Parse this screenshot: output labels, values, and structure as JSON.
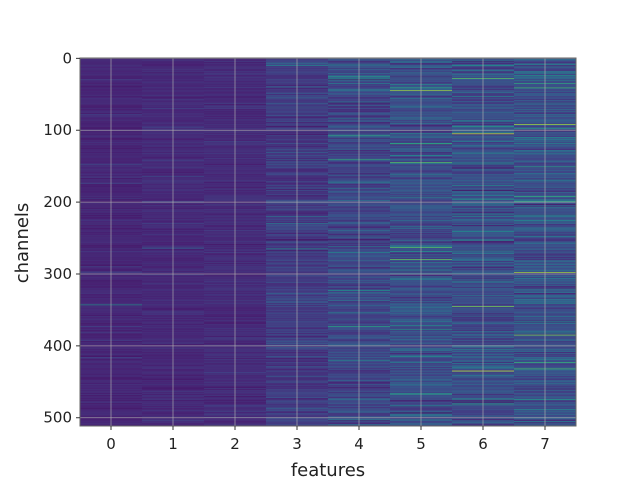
{
  "chart_data": {
    "type": "heatmap",
    "title": "",
    "xlabel": "features",
    "ylabel": "channels",
    "x_categories": [
      "0",
      "1",
      "2",
      "3",
      "4",
      "5",
      "6",
      "7"
    ],
    "y_range": [
      0,
      511
    ],
    "y_ticks": [
      "0",
      "100",
      "200",
      "300",
      "400",
      "500"
    ],
    "y_inverted": true,
    "colormap": "viridis",
    "grid": true,
    "value_range": [
      0,
      1
    ],
    "column_mean_intensity": [
      0.14,
      0.15,
      0.16,
      0.22,
      0.27,
      0.3,
      0.3,
      0.32
    ],
    "column_spread": [
      0.05,
      0.05,
      0.06,
      0.12,
      0.15,
      0.17,
      0.17,
      0.18
    ],
    "highlights": [
      {
        "feature": 0,
        "channel": 343,
        "value": 0.62
      },
      {
        "feature": 1,
        "channel": 264,
        "value": 0.4
      },
      {
        "feature": 3,
        "channel": 10,
        "value": 0.55
      },
      {
        "feature": 3,
        "channel": 265,
        "value": 0.6
      },
      {
        "feature": 4,
        "channel": 25,
        "value": 0.65
      },
      {
        "feature": 4,
        "channel": 107,
        "value": 0.7
      },
      {
        "feature": 4,
        "channel": 141,
        "value": 0.72
      },
      {
        "feature": 4,
        "channel": 373,
        "value": 0.68
      },
      {
        "feature": 4,
        "channel": 420,
        "value": 0.6
      },
      {
        "feature": 5,
        "channel": 45,
        "value": 0.9
      },
      {
        "feature": 5,
        "channel": 135,
        "value": 0.62
      },
      {
        "feature": 5,
        "channel": 263,
        "value": 0.8
      },
      {
        "feature": 5,
        "channel": 280,
        "value": 0.82
      },
      {
        "feature": 6,
        "channel": 28,
        "value": 0.8
      },
      {
        "feature": 6,
        "channel": 105,
        "value": 0.95
      },
      {
        "feature": 6,
        "channel": 345,
        "value": 0.85
      },
      {
        "feature": 6,
        "channel": 435,
        "value": 0.95
      },
      {
        "feature": 7,
        "channel": 35,
        "value": 0.7
      },
      {
        "feature": 7,
        "channel": 92,
        "value": 0.9
      },
      {
        "feature": 7,
        "channel": 192,
        "value": 0.72
      },
      {
        "feature": 7,
        "channel": 298,
        "value": 0.9
      },
      {
        "feature": 7,
        "channel": 385,
        "value": 0.85
      },
      {
        "feature": 7,
        "channel": 475,
        "value": 0.65
      }
    ]
  }
}
